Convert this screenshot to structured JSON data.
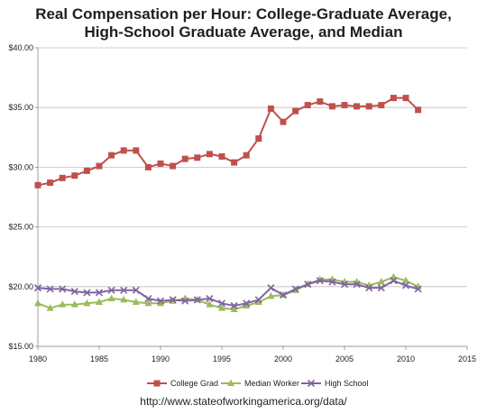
{
  "chart_data": {
    "type": "line",
    "title_line1": "Real Compensation per Hour: College-Graduate Average,",
    "title_line2": "High-School Graduate Average, and Median",
    "xlabel": "",
    "ylabel": "",
    "xlim": [
      1980,
      2015
    ],
    "ylim": [
      15,
      40
    ],
    "x_ticks": [
      "1980",
      "1985",
      "1990",
      "1995",
      "2000",
      "2005",
      "2010",
      "2015"
    ],
    "y_ticks": [
      "$15.00",
      "$20.00",
      "$25.00",
      "$30.00",
      "$35.00",
      "$40.00"
    ],
    "grid": "horizontal",
    "legend_position": "bottom",
    "source": "http://www.stateofworkingamerica.org/data/",
    "x": [
      1980,
      1981,
      1982,
      1983,
      1984,
      1985,
      1986,
      1987,
      1988,
      1989,
      1990,
      1991,
      1992,
      1993,
      1994,
      1995,
      1996,
      1997,
      1998,
      1999,
      2000,
      2001,
      2002,
      2003,
      2004,
      2005,
      2006,
      2007,
      2008,
      2009,
      2010,
      2011
    ],
    "series": [
      {
        "name": "College Grad",
        "color": "#c0504d",
        "marker": "square",
        "values": [
          28.5,
          28.7,
          29.1,
          29.3,
          29.7,
          30.1,
          31.0,
          31.4,
          31.4,
          30.0,
          30.3,
          30.1,
          30.7,
          30.8,
          31.1,
          30.9,
          30.4,
          31.0,
          32.4,
          34.9,
          33.8,
          34.7,
          35.2,
          35.5,
          35.1,
          35.2,
          35.1,
          35.1,
          35.2,
          35.8,
          35.8,
          34.8
        ]
      },
      {
        "name": "Median Worker",
        "color": "#9bbb59",
        "marker": "triangle",
        "values": [
          18.6,
          18.2,
          18.5,
          18.5,
          18.6,
          18.7,
          19.0,
          18.9,
          18.7,
          18.6,
          18.6,
          18.8,
          19.0,
          18.9,
          18.5,
          18.2,
          18.1,
          18.4,
          18.7,
          19.2,
          19.3,
          19.7,
          20.2,
          20.6,
          20.6,
          20.4,
          20.4,
          20.1,
          20.4,
          20.8,
          20.5,
          20.0
        ]
      },
      {
        "name": "High School",
        "color": "#8064a2",
        "marker": "x",
        "values": [
          19.9,
          19.8,
          19.8,
          19.6,
          19.5,
          19.5,
          19.7,
          19.7,
          19.7,
          19.0,
          18.8,
          18.9,
          18.8,
          18.9,
          19.0,
          18.6,
          18.4,
          18.6,
          18.9,
          19.9,
          19.3,
          19.8,
          20.2,
          20.5,
          20.4,
          20.2,
          20.2,
          19.9,
          19.9,
          20.5,
          20.1,
          19.8
        ]
      }
    ]
  }
}
